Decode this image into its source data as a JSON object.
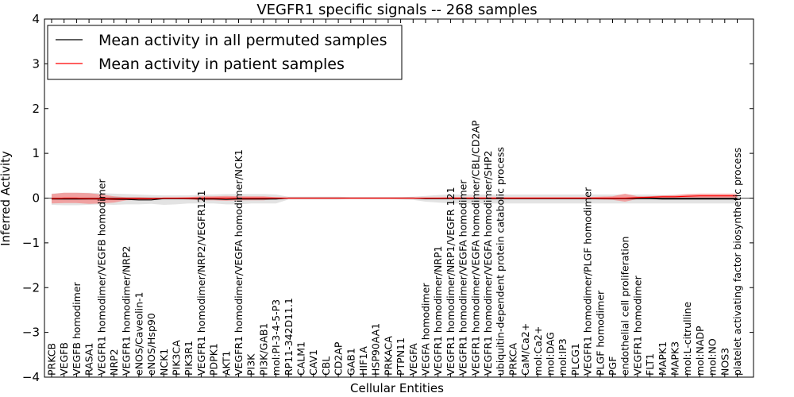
{
  "chart_data": {
    "type": "line",
    "title": "VEGFR1 specific signals -- 268 samples",
    "xlabel": "Cellular Entities",
    "ylabel": "Inferred Activity",
    "ylim": [
      -4,
      4
    ],
    "yticks": [
      -4,
      -3,
      -2,
      -1,
      0,
      1,
      2,
      3,
      4
    ],
    "ytick_labels": [
      "−4",
      "−3",
      "−2",
      "−1",
      "0",
      "1",
      "2",
      "3",
      "4"
    ],
    "legend_position": "top-left",
    "categories": [
      "PRKCB",
      "VEGFB",
      "VEGFB homodimer",
      "RASA1",
      "VEGFR1 homodimer/VEGFB homodimer",
      "NRP2",
      "VEGFR1 homodimer/NRP2",
      "eNOS/Caveolin-1",
      "eNOS/Hsp90",
      "NCK1",
      "PIK3CA",
      "PIK3R1",
      "VEGFR1 homodimer/NRP2/VEGFR121",
      "PDPK1",
      "AKT1",
      "VEGFR1 homodimer/VEGFA homodimer/NCK1",
      "PI3K",
      "PI3K/GAB1",
      "mol:PI-3-4-5-P3",
      "RP11-342D11.1",
      "CALM1",
      "CAV1",
      "CBL",
      "CD2AP",
      "GAB1",
      "HIF1A",
      "HSP90AA1",
      "PRKACA",
      "PTPN11",
      "VEGFA",
      "VEGFA homodimer",
      "VEGFR1 homodimer/NRP1",
      "VEGFR1 homodimer/NRP1/VEGFR 121",
      "VEGFR1 homodimer/VEGFA homodimer",
      "VEGFR1 homodimer/VEGFA homodimer/CBL/CD2AP",
      "VEGFR1 homodimer/VEGFA homodimer/SHP2",
      "ubiquitin-dependent protein catabolic process",
      "PRKCA",
      "CaM/Ca2+",
      "mol:Ca2+",
      "mol:DAG",
      "mol:IP3",
      "PLCG1",
      "VEGFR1 homodimer/PLGF homodimer",
      "PLGF homodimer",
      "PGF",
      "endothelial cell proliferation",
      "VEGFR1 homodimer",
      "FLT1",
      "MAPK1",
      "MAPK3",
      "mol:L-citrulline",
      "mol:NADP",
      "mol:NO",
      "NOS3",
      "platelet activating factor biosynthetic process"
    ],
    "series": [
      {
        "name": "Mean activity in all permuted samples",
        "color": "#000000",
        "band_color": "#cccccc",
        "values": [
          -0.02,
          -0.02,
          -0.02,
          -0.02,
          -0.02,
          -0.03,
          -0.03,
          -0.04,
          -0.04,
          -0.01,
          -0.01,
          -0.01,
          -0.02,
          -0.02,
          -0.03,
          -0.02,
          -0.02,
          -0.02,
          -0.02,
          0.0,
          0.0,
          0.0,
          0.0,
          0.0,
          0.0,
          0.0,
          0.0,
          0.0,
          0.0,
          0.0,
          -0.01,
          -0.01,
          -0.01,
          -0.01,
          -0.01,
          -0.01,
          -0.01,
          -0.01,
          -0.01,
          -0.01,
          -0.01,
          -0.01,
          -0.01,
          -0.01,
          -0.01,
          -0.01,
          -0.01,
          -0.01,
          -0.01,
          -0.02,
          -0.02,
          -0.02,
          -0.02,
          -0.02,
          -0.02,
          -0.02
        ],
        "upper": [
          0.1,
          0.12,
          0.12,
          0.12,
          0.11,
          0.1,
          0.09,
          0.08,
          0.07,
          0.06,
          0.06,
          0.06,
          0.08,
          0.08,
          0.09,
          0.09,
          0.09,
          0.09,
          0.08,
          0.03,
          0.03,
          0.03,
          0.03,
          0.03,
          0.02,
          0.02,
          0.02,
          0.02,
          0.02,
          0.03,
          0.05,
          0.07,
          0.08,
          0.08,
          0.08,
          0.08,
          0.08,
          0.08,
          0.08,
          0.08,
          0.08,
          0.08,
          0.08,
          0.08,
          0.08,
          0.08,
          0.08,
          0.08,
          0.08,
          0.07,
          0.07,
          0.07,
          0.07,
          0.07,
          0.07,
          0.07
        ],
        "lower": [
          -0.15,
          -0.16,
          -0.16,
          -0.15,
          -0.14,
          -0.15,
          -0.14,
          -0.14,
          -0.13,
          -0.15,
          -0.14,
          -0.12,
          -0.12,
          -0.12,
          -0.14,
          -0.14,
          -0.12,
          -0.12,
          -0.12,
          -0.03,
          -0.03,
          -0.03,
          -0.03,
          -0.03,
          -0.02,
          -0.02,
          -0.02,
          -0.02,
          -0.03,
          -0.04,
          -0.08,
          -0.1,
          -0.12,
          -0.12,
          -0.12,
          -0.12,
          -0.12,
          -0.12,
          -0.12,
          -0.12,
          -0.12,
          -0.12,
          -0.12,
          -0.12,
          -0.12,
          -0.12,
          -0.12,
          -0.12,
          -0.12,
          -0.12,
          -0.12,
          -0.12,
          -0.12,
          -0.12,
          -0.12,
          -0.12
        ]
      },
      {
        "name": "Mean activity in patient samples",
        "color": "#ff0000",
        "band_color": "#ff5050",
        "values": [
          -0.01,
          0.0,
          0.0,
          -0.01,
          -0.01,
          -0.02,
          -0.01,
          -0.01,
          -0.01,
          0.0,
          0.0,
          0.0,
          0.0,
          0.0,
          0.0,
          0.0,
          0.0,
          0.0,
          0.0,
          0.0,
          0.0,
          0.0,
          0.0,
          0.0,
          0.0,
          0.0,
          0.0,
          0.0,
          0.0,
          0.0,
          0.0,
          0.0,
          0.0,
          0.0,
          0.0,
          0.0,
          0.0,
          0.0,
          0.0,
          0.0,
          0.0,
          0.0,
          0.0,
          0.0,
          0.0,
          0.0,
          0.0,
          0.01,
          0.02,
          0.03,
          0.03,
          0.04,
          0.05,
          0.05,
          0.05,
          0.05
        ],
        "upper": [
          0.09,
          0.12,
          0.12,
          0.11,
          0.08,
          0.04,
          0.02,
          0.02,
          0.01,
          0.01,
          0.01,
          0.02,
          0.04,
          0.04,
          0.05,
          0.04,
          0.04,
          0.04,
          0.02,
          0.01,
          0.01,
          0.01,
          0.01,
          0.01,
          0.01,
          0.01,
          0.01,
          0.01,
          0.01,
          0.01,
          0.01,
          0.01,
          0.02,
          0.02,
          0.02,
          0.02,
          0.02,
          0.02,
          0.02,
          0.02,
          0.02,
          0.02,
          0.02,
          0.02,
          0.03,
          0.04,
          0.1,
          0.04,
          0.04,
          0.06,
          0.07,
          0.09,
          0.1,
          0.1,
          0.1,
          0.1
        ],
        "lower": [
          -0.12,
          -0.11,
          -0.11,
          -0.13,
          -0.12,
          -0.1,
          -0.05,
          -0.04,
          -0.03,
          -0.02,
          -0.02,
          -0.03,
          -0.05,
          -0.05,
          -0.06,
          -0.05,
          -0.05,
          -0.05,
          -0.02,
          -0.01,
          -0.01,
          -0.01,
          -0.01,
          -0.01,
          -0.01,
          -0.01,
          -0.01,
          -0.01,
          -0.01,
          -0.01,
          -0.01,
          -0.01,
          -0.02,
          -0.02,
          -0.02,
          -0.02,
          -0.02,
          -0.02,
          -0.02,
          -0.02,
          -0.02,
          -0.02,
          -0.02,
          -0.02,
          -0.03,
          -0.04,
          -0.08,
          -0.02,
          -0.01,
          0.0,
          0.0,
          0.0,
          0.0,
          0.0,
          0.0,
          0.0
        ]
      }
    ]
  }
}
